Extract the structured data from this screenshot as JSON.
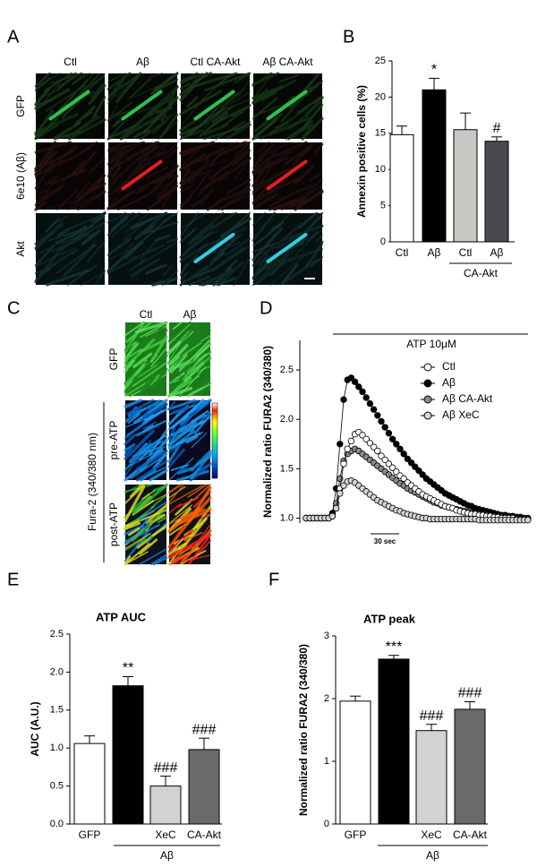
{
  "figure_panels": [
    "A",
    "B",
    "C",
    "D",
    "E",
    "F"
  ],
  "panel_a": {
    "columns": [
      "Ctl",
      "Aβ",
      "Ctl CA-Akt",
      "Aβ CA-Akt"
    ],
    "rows": [
      "GFP",
      "6e10 (Aβ)",
      "Akt"
    ]
  },
  "panel_c": {
    "columns": [
      "Ctl",
      "Aβ"
    ],
    "rows": [
      "GFP",
      "pre-ATP",
      "post-ATP"
    ],
    "group_label": "Fura-2 (340/380 nm)"
  },
  "chart_data": [
    {
      "type": "bar",
      "y_label": "Annexin positive cells (%)",
      "categories": [
        "Ctl",
        "Aβ",
        "Ctl",
        "Aβ"
      ],
      "group_label": "CA-Akt",
      "values": [
        14.8,
        21,
        15.5,
        13.9
      ],
      "errors": [
        1.2,
        1.6,
        2.3,
        0.6
      ],
      "colors": [
        "#ffffff",
        "#000000",
        "#c8c8c4",
        "#4a4a4e"
      ],
      "annotations": [
        null,
        "*",
        null,
        "#"
      ],
      "ylim": [
        0,
        25
      ],
      "yticks": [
        0,
        5,
        10,
        15,
        20,
        25
      ]
    },
    {
      "type": "line",
      "y_label": "Normalized ratio FURA2 (340/380)",
      "stimulus_label": "ATP 10μM",
      "scale_bar_label": "30 sec",
      "legend": "right",
      "ylim": [
        0.95,
        2.8
      ],
      "yticks": [
        {
          "value": 1.0,
          "label": "1.0"
        },
        1.5,
        {
          "value": 2.0,
          "label": "2.0"
        },
        2.5
      ],
      "series": [
        {
          "name": "Ctl",
          "color": "#ffffff",
          "values": [
            1,
            1,
            1,
            1,
            1,
            1,
            1,
            1.02,
            1.1,
            1.3,
            1.55,
            1.7,
            1.78,
            1.85,
            1.87,
            1.84,
            1.8,
            1.76,
            1.72,
            1.68,
            1.63,
            1.59,
            1.55,
            1.51,
            1.47,
            1.43,
            1.4,
            1.36,
            1.33,
            1.3,
            1.27,
            1.24,
            1.22,
            1.2,
            1.18,
            1.16,
            1.14,
            1.12,
            1.11,
            1.1,
            1.08,
            1.07,
            1.06,
            1.05,
            1.04,
            1.04,
            1.03,
            1.03,
            1.02,
            1.02,
            1.01,
            1.01,
            1,
            1,
            1,
            1,
            0.99,
            0.99,
            0.99,
            0.99
          ]
        },
        {
          "name": "Aβ",
          "color": "#000000",
          "values": [
            1,
            1,
            1,
            1,
            1,
            1,
            1,
            1.05,
            1.3,
            1.75,
            2.2,
            2.4,
            2.42,
            2.38,
            2.33,
            2.28,
            2.22,
            2.16,
            2.1,
            2.04,
            1.98,
            1.92,
            1.86,
            1.8,
            1.75,
            1.7,
            1.65,
            1.6,
            1.56,
            1.52,
            1.48,
            1.44,
            1.4,
            1.37,
            1.34,
            1.31,
            1.28,
            1.25,
            1.23,
            1.21,
            1.19,
            1.17,
            1.15,
            1.13,
            1.12,
            1.1,
            1.09,
            1.08,
            1.07,
            1.06,
            1.05,
            1.04,
            1.03,
            1.03,
            1.02,
            1.02,
            1.01,
            1.01,
            1,
            1
          ]
        },
        {
          "name": "Aβ CA-Akt",
          "color": "#8a8a8a",
          "values": [
            1,
            1,
            1,
            1,
            1,
            1,
            1,
            1.02,
            1.15,
            1.4,
            1.58,
            1.65,
            1.68,
            1.7,
            1.68,
            1.65,
            1.62,
            1.59,
            1.56,
            1.53,
            1.5,
            1.47,
            1.44,
            1.41,
            1.38,
            1.35,
            1.33,
            1.3,
            1.28,
            1.26,
            1.24,
            1.22,
            1.2,
            1.18,
            1.16,
            1.15,
            1.13,
            1.12,
            1.11,
            1.1,
            1.09,
            1.08,
            1.07,
            1.06,
            1.05,
            1.05,
            1.04,
            1.03,
            1.03,
            1.02,
            1.02,
            1.01,
            1.01,
            1,
            1,
            1,
            0.99,
            0.99,
            0.99,
            0.99
          ]
        },
        {
          "name": "Aβ XeC",
          "color": "#d4d4d4",
          "values": [
            1,
            1,
            1,
            1,
            1,
            1,
            1,
            1.02,
            1.1,
            1.25,
            1.33,
            1.37,
            1.38,
            1.36,
            1.33,
            1.3,
            1.27,
            1.24,
            1.21,
            1.18,
            1.16,
            1.14,
            1.12,
            1.1,
            1.08,
            1.07,
            1.05,
            1.04,
            1.03,
            1.02,
            1.01,
            1,
            1,
            0.99,
            0.99,
            0.99,
            0.99,
            0.99,
            0.99,
            0.99,
            0.99,
            0.99,
            0.99,
            0.99,
            0.99,
            0.99,
            0.98,
            0.98,
            0.98,
            0.98,
            0.98,
            0.98,
            0.98,
            0.98,
            0.98,
            0.98,
            0.98,
            0.98,
            0.98,
            0.98
          ]
        }
      ]
    },
    {
      "type": "bar",
      "title": "ATP AUC",
      "y_label": "AUC (A.U.)",
      "categories": [
        "GFP",
        null,
        "XeC",
        "CA-Akt"
      ],
      "group_label": "Aβ",
      "values": [
        1.06,
        1.82,
        0.5,
        0.98
      ],
      "errors": [
        0.1,
        0.12,
        0.13,
        0.15
      ],
      "colors": [
        "#ffffff",
        "#000000",
        "#d2d2d2",
        "#6a6a6a"
      ],
      "annotations": [
        null,
        "**",
        "###",
        "###"
      ],
      "ylim": [
        0,
        2.5
      ],
      "yticks": [
        {
          "value": 0,
          "label": "0.0"
        },
        0.5,
        {
          "value": 1,
          "label": "1.0"
        },
        1.5,
        {
          "value": 2,
          "label": "2.0"
        },
        2.5
      ]
    },
    {
      "type": "bar",
      "title": "ATP peak",
      "y_label": "Normalized ratio FURA2 (340/380)",
      "categories": [
        "GFP",
        null,
        "XeC",
        "CA-Akt"
      ],
      "group_label": "Aβ",
      "values": [
        1.96,
        2.63,
        1.49,
        1.83
      ],
      "errors": [
        0.08,
        0.06,
        0.1,
        0.12
      ],
      "colors": [
        "#ffffff",
        "#000000",
        "#d2d2d2",
        "#6a6a6a"
      ],
      "annotations": [
        null,
        "***",
        "###",
        "###"
      ],
      "ylim": [
        0,
        3
      ],
      "yticks": [
        0,
        1,
        2,
        3
      ]
    }
  ]
}
